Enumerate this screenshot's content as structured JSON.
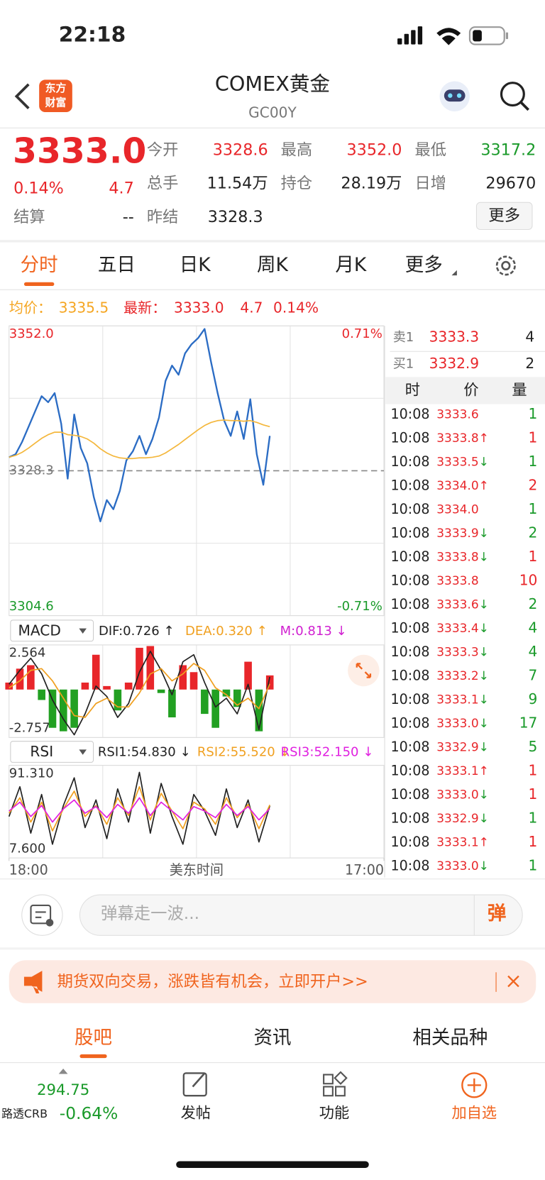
{
  "status_bar": {
    "time": "22:18"
  },
  "header": {
    "logo_lines": [
      "东方",
      "财富"
    ],
    "title": "COMEX黄金",
    "code": "GC00Y"
  },
  "quote": {
    "price": "3333.0",
    "change_pct": "0.14%",
    "change": "4.7",
    "settle_label": "结算",
    "settle": "--",
    "fields": [
      {
        "label": "今开",
        "value": "3328.6",
        "color": "#e8262a"
      },
      {
        "label": "最高",
        "value": "3352.0",
        "color": "#e8262a"
      },
      {
        "label": "最低",
        "value": "3317.2",
        "color": "#1a9a2a"
      },
      {
        "label": "总手",
        "value": "11.54万",
        "color": "#222222"
      },
      {
        "label": "持仓",
        "value": "28.19万",
        "color": "#222222"
      },
      {
        "label": "日增",
        "value": "29670",
        "color": "#222222"
      },
      {
        "label": "昨结",
        "value": "3328.3",
        "color": "#222222"
      }
    ],
    "more": "更多"
  },
  "tabs": [
    "分时",
    "五日",
    "日K",
    "周K",
    "月K",
    "更多"
  ],
  "summary": {
    "avg_label": "均价：",
    "avg": "3335.5",
    "last_label": "最新：",
    "last": "3333.0",
    "change": "4.7",
    "change_pct": "0.14%"
  },
  "chart_data": [
    {
      "type": "line",
      "x": [
        0,
        24,
        48,
        72,
        96,
        120,
        144,
        168,
        192,
        216,
        240,
        264,
        288,
        312,
        336,
        360,
        384,
        408,
        432,
        456,
        480,
        504,
        528,
        552,
        576,
        600,
        624,
        648,
        672,
        696,
        720,
        744,
        768,
        792,
        816,
        840,
        864,
        888,
        912,
        936,
        960
      ],
      "xlim": [
        0,
        1380
      ],
      "ylim": [
        3304.6,
        3352.0
      ],
      "yticks": [
        3304.6,
        {
          "value": 3352.0,
          "label": "3352.0"
        }
      ],
      "baseline": {
        "value": 3328.3,
        "label": "3328.3"
      },
      "y2lim": [
        -0.71,
        0.71
      ],
      "y2ticks": [
        {
          "value": -0.71,
          "label": "-0.71%"
        },
        {
          "value": 0.71,
          "label": "0.71%"
        }
      ],
      "series": [
        {
          "color": "#2b6cc4",
          "values": [
            3330.5,
            3331.0,
            3333.0,
            3335.5,
            3338.0,
            3340.5,
            3339.5,
            3341.0,
            3336.0,
            3327.0,
            3337.5,
            3332.0,
            3329.5,
            3324.0,
            3320.0,
            3323.5,
            3322.0,
            3325.0,
            3330.0,
            3331.5,
            3334.0,
            3331.0,
            3333.5,
            3337.0,
            3343.0,
            3345.5,
            3344.0,
            3347.5,
            3349.0,
            3350.0,
            3351.5,
            3346.0,
            3341.0,
            3336.5,
            3334.0,
            3338.0,
            3333.5,
            3340.0,
            3331.0,
            3326.0,
            3334.0
          ]
        },
        {
          "color": "#f4b73c",
          "values": [
            3330.5,
            3330.8,
            3331.3,
            3332.0,
            3332.8,
            3333.6,
            3334.2,
            3334.6,
            3334.6,
            3334.2,
            3334.1,
            3333.9,
            3333.5,
            3332.8,
            3331.9,
            3331.2,
            3330.7,
            3330.4,
            3330.3,
            3330.3,
            3330.4,
            3330.4,
            3330.5,
            3330.7,
            3331.2,
            3331.9,
            3332.6,
            3333.4,
            3334.2,
            3335.0,
            3335.7,
            3336.2,
            3336.5,
            3336.6,
            3336.5,
            3336.5,
            3336.4,
            3336.5,
            3336.2,
            3335.8,
            3335.5
          ]
        }
      ]
    },
    {
      "type": "line",
      "indicator": "MACD",
      "x": [
        0,
        40,
        80,
        120,
        160,
        200,
        240,
        280,
        320,
        360,
        400,
        440,
        480,
        520,
        560,
        600,
        640,
        680,
        720,
        760,
        800,
        840,
        880,
        920,
        960
      ],
      "xlim": [
        0,
        1380
      ],
      "ylim": [
        -2.757,
        2.564
      ],
      "yticks": [
        -2.757,
        2.564
      ],
      "series": [
        {
          "name": "DIF:0.726 ↑",
          "color": "#222222",
          "values": [
            0.3,
            1.1,
            1.8,
            0.9,
            -0.6,
            -1.7,
            -2.6,
            -1.4,
            0.2,
            -0.4,
            -1.6,
            -0.8,
            1.0,
            2.2,
            1.1,
            -0.3,
            1.6,
            2.0,
            0.4,
            -1.0,
            -0.5,
            -1.4,
            0.3,
            -2.3,
            0.726
          ]
        },
        {
          "name": "DEA:0.320 ↑",
          "color": "#f0a020",
          "values": [
            0.1,
            0.5,
            1.1,
            1.2,
            0.5,
            -0.5,
            -1.5,
            -1.6,
            -0.8,
            -0.5,
            -1.0,
            -1.0,
            -0.2,
            0.9,
            1.2,
            0.5,
            0.9,
            1.5,
            1.1,
            0.1,
            -0.3,
            -0.9,
            -0.5,
            -1.1,
            0.32
          ]
        },
        {
          "name": "M:0.813 ↓",
          "type": "bar",
          "color": "#e8262a",
          "negative_color": "#22a022",
          "legend_color": "#d020d0",
          "values": [
            0.4,
            1.2,
            1.4,
            -0.6,
            -2.2,
            -2.4,
            -2.2,
            0.4,
            2.0,
            0.2,
            -1.2,
            0.4,
            2.4,
            2.5,
            -0.2,
            -1.6,
            1.4,
            1.0,
            -1.4,
            -2.2,
            -0.4,
            -1.0,
            1.6,
            -2.4,
            0.813
          ]
        }
      ]
    },
    {
      "type": "line",
      "indicator": "RSI",
      "x": [
        0,
        40,
        80,
        120,
        160,
        200,
        240,
        280,
        320,
        360,
        400,
        440,
        480,
        520,
        560,
        600,
        640,
        680,
        720,
        760,
        800,
        840,
        880,
        920,
        960
      ],
      "xlim": [
        0,
        1380
      ],
      "xticks": [
        {
          "value": 0,
          "label": "18:00"
        },
        {
          "value": 1380,
          "label": "17:00"
        }
      ],
      "xlabel": "美东时间",
      "ylim": [
        7.6,
        91.31
      ],
      "yticks": [
        {
          "value": 7.6,
          "label": "7.600"
        },
        {
          "value": 91.31,
          "label": "91.310"
        }
      ],
      "series": [
        {
          "name": "RSI1:54.830 ↓",
          "color": "#222222",
          "values": [
            45,
            72,
            30,
            65,
            20,
            55,
            80,
            35,
            60,
            25,
            70,
            40,
            85,
            30,
            75,
            45,
            20,
            65,
            50,
            28,
            70,
            35,
            60,
            22,
            54.83
          ]
        },
        {
          "name": "RSI2:55.520 ↓",
          "color": "#f0a020",
          "values": [
            48,
            62,
            40,
            58,
            32,
            52,
            68,
            45,
            55,
            38,
            62,
            46,
            72,
            42,
            66,
            50,
            34,
            58,
            52,
            38,
            62,
            44,
            56,
            34,
            55.52
          ]
        },
        {
          "name": "RSI3:52.150 ↓",
          "color": "#e020e0",
          "values": [
            50,
            58,
            45,
            55,
            40,
            52,
            60,
            48,
            54,
            44,
            56,
            48,
            62,
            46,
            58,
            50,
            42,
            54,
            50,
            44,
            56,
            46,
            54,
            42,
            52.15
          ]
        }
      ]
    }
  ],
  "order_book": {
    "sell": {
      "label": "卖1",
      "price": "3333.3",
      "qty": "4"
    },
    "buy": {
      "label": "买1",
      "price": "3332.9",
      "qty": "2"
    },
    "columns": [
      "时",
      "价",
      "量"
    ],
    "rows": [
      {
        "time": "10:08",
        "price": "3333.6",
        "qty": "1",
        "side": "sell"
      },
      {
        "time": "10:08",
        "price": "3333.8",
        "arrow": "↑",
        "qty": "1",
        "side": "buy"
      },
      {
        "time": "10:08",
        "price": "3333.5",
        "arrow": "↓",
        "qty": "1",
        "side": "sell"
      },
      {
        "time": "10:08",
        "price": "3334.0",
        "arrow": "↑",
        "qty": "2",
        "side": "buy"
      },
      {
        "time": "10:08",
        "price": "3334.0",
        "qty": "1",
        "side": "sell"
      },
      {
        "time": "10:08",
        "price": "3333.9",
        "arrow": "↓",
        "qty": "2",
        "side": "sell"
      },
      {
        "time": "10:08",
        "price": "3333.8",
        "arrow": "↓",
        "qty": "1",
        "side": "buy"
      },
      {
        "time": "10:08",
        "price": "3333.8",
        "qty": "10",
        "side": "buy"
      },
      {
        "time": "10:08",
        "price": "3333.6",
        "arrow": "↓",
        "qty": "2",
        "side": "sell"
      },
      {
        "time": "10:08",
        "price": "3333.4",
        "arrow": "↓",
        "qty": "4",
        "side": "sell"
      },
      {
        "time": "10:08",
        "price": "3333.3",
        "arrow": "↓",
        "qty": "4",
        "side": "sell"
      },
      {
        "time": "10:08",
        "price": "3333.2",
        "arrow": "↓",
        "qty": "7",
        "side": "sell"
      },
      {
        "time": "10:08",
        "price": "3333.1",
        "arrow": "↓",
        "qty": "9",
        "side": "sell"
      },
      {
        "time": "10:08",
        "price": "3333.0",
        "arrow": "↓",
        "qty": "17",
        "side": "sell"
      },
      {
        "time": "10:08",
        "price": "3332.9",
        "arrow": "↓",
        "qty": "5",
        "side": "sell"
      },
      {
        "time": "10:08",
        "price": "3333.1",
        "arrow": "↑",
        "qty": "1",
        "side": "buy"
      },
      {
        "time": "10:08",
        "price": "3333.0",
        "arrow": "↓",
        "qty": "1",
        "side": "buy"
      },
      {
        "time": "10:08",
        "price": "3332.9",
        "arrow": "↓",
        "qty": "1",
        "side": "sell"
      },
      {
        "time": "10:08",
        "price": "3333.1",
        "arrow": "↑",
        "qty": "1",
        "side": "buy"
      },
      {
        "time": "10:08",
        "price": "3333.0",
        "arrow": "↓",
        "qty": "1",
        "side": "sell"
      }
    ]
  },
  "input": {
    "placeholder": "弹幕走一波...",
    "button": "弹"
  },
  "banner": {
    "text": "期货双向交易，涨跌皆有机会，立即开户>>"
  },
  "bottom_tabs": [
    "股吧",
    "资讯",
    "相关品种"
  ],
  "footer": {
    "ticker_value": "294.75",
    "ticker_name": "路透CRB",
    "ticker_change": "-0.64%",
    "items": [
      "发帖",
      "功能",
      "加自选"
    ]
  }
}
